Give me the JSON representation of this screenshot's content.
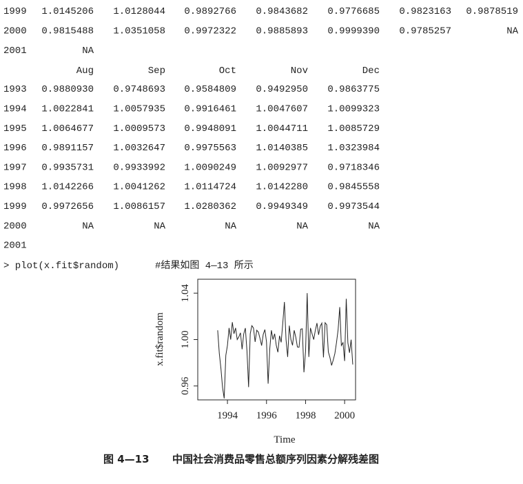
{
  "output": {
    "top_rows": [
      [
        "1999",
        "1.0145206",
        "1.0128044",
        "0.9892766",
        "0.9843682",
        "0.9776685",
        "0.9823163",
        "0.9878519"
      ],
      [
        "2000",
        "0.9815488",
        "1.0351058",
        "0.9972322",
        "0.9885893",
        "0.9999390",
        "0.9785257",
        "NA"
      ],
      [
        "2001",
        "NA"
      ]
    ],
    "header": [
      "Aug",
      "Sep",
      "Oct",
      "Nov",
      "Dec"
    ],
    "rows": [
      [
        "1993",
        "0.9880930",
        "0.9748693",
        "0.9584809",
        "0.9492950",
        "0.9863775"
      ],
      [
        "1994",
        "1.0022841",
        "1.0057935",
        "0.9916461",
        "1.0047607",
        "1.0099323"
      ],
      [
        "1995",
        "1.0064677",
        "1.0009573",
        "0.9948091",
        "1.0044711",
        "1.0085729"
      ],
      [
        "1996",
        "0.9891157",
        "1.0032647",
        "0.9975563",
        "1.0140385",
        "1.0323984"
      ],
      [
        "1997",
        "0.9935731",
        "0.9933992",
        "1.0090249",
        "1.0092977",
        "0.9718346"
      ],
      [
        "1998",
        "1.0142266",
        "1.0041262",
        "1.0114724",
        "1.0142280",
        "0.9845558"
      ],
      [
        "1999",
        "0.9972656",
        "1.0086157",
        "1.0280362",
        "0.9949349",
        "0.9973544"
      ],
      [
        "2000",
        "NA",
        "NA",
        "NA",
        "NA",
        "NA"
      ],
      [
        "2001"
      ]
    ]
  },
  "command": "> plot(x.fit$random)",
  "comment": "#结果如图 4—13 所示",
  "chart_data": {
    "type": "line",
    "x_label": "Time",
    "y_label": "x.fit$random",
    "x": [
      1993.5,
      1993.583,
      1993.667,
      1993.75,
      1993.833,
      1993.917,
      1994,
      1994.083,
      1994.167,
      1994.25,
      1994.333,
      1994.417,
      1994.5,
      1994.583,
      1994.667,
      1994.75,
      1994.833,
      1994.917,
      1995,
      1995.083,
      1995.167,
      1995.25,
      1995.333,
      1995.417,
      1995.5,
      1995.583,
      1995.667,
      1995.75,
      1995.833,
      1995.917,
      1996,
      1996.083,
      1996.167,
      1996.25,
      1996.333,
      1996.417,
      1996.5,
      1996.583,
      1996.667,
      1996.75,
      1996.833,
      1996.917,
      1997,
      1997.083,
      1997.167,
      1997.25,
      1997.333,
      1997.417,
      1997.5,
      1997.583,
      1997.667,
      1997.75,
      1997.833,
      1997.917,
      1998,
      1998.083,
      1998.167,
      1998.25,
      1998.333,
      1998.417,
      1998.5,
      1998.583,
      1998.667,
      1998.75,
      1998.833,
      1998.917,
      1999,
      1999.083,
      1999.167,
      1999.25,
      1999.333,
      1999.417,
      1999.5,
      1999.583,
      1999.667,
      1999.75,
      1999.833,
      1999.917,
      2000,
      2000.083,
      2000.167,
      2000.25,
      2000.333,
      2000.417
    ],
    "series": [
      {
        "color": "#222222",
        "values": [
          1.008,
          0.9881,
          0.9749,
          0.9585,
          0.9493,
          0.9864,
          0.995,
          1.01,
          1.0,
          1.015,
          1.005,
          1.01,
          1.0,
          1.0023,
          1.0058,
          0.9916,
          1.0048,
          1.0099,
          0.99,
          0.959,
          1.005,
          1.012,
          1.01,
          0.998,
          1.008,
          1.0065,
          1.001,
          0.9948,
          1.0045,
          1.0086,
          0.998,
          0.962,
          0.992,
          1.008,
          1.0,
          1.005,
          0.995,
          0.9891,
          1.0033,
          0.9976,
          1.014,
          1.0324,
          1.0,
          0.985,
          1.012,
          1.0,
          0.995,
          1.008,
          1.002,
          0.9936,
          0.9934,
          1.009,
          1.0093,
          0.9718,
          0.99,
          1.04,
          0.985,
          1.01,
          1.005,
          1.0,
          1.008,
          1.0142,
          1.0041,
          1.0115,
          1.0142,
          0.9846,
          1.0145,
          1.0128,
          0.9893,
          0.9844,
          0.9777,
          0.9823,
          0.9879,
          0.9973,
          1.0086,
          1.028,
          0.9949,
          0.9974,
          0.9815,
          1.0351,
          0.9972,
          0.9886,
          0.9999,
          0.9785
        ]
      }
    ],
    "xlim": [
      1992.48,
      2000.56
    ],
    "ylim": [
      0.948,
      1.052
    ],
    "xticks": [
      1994,
      1996,
      1998,
      2000
    ],
    "yticks": [
      0.96,
      {
        "value": 1.0,
        "label": "1.00"
      },
      1.04
    ]
  },
  "caption": {
    "label": "图 4—13",
    "text": "中国社会消费品零售总额序列因素分解残差图"
  }
}
